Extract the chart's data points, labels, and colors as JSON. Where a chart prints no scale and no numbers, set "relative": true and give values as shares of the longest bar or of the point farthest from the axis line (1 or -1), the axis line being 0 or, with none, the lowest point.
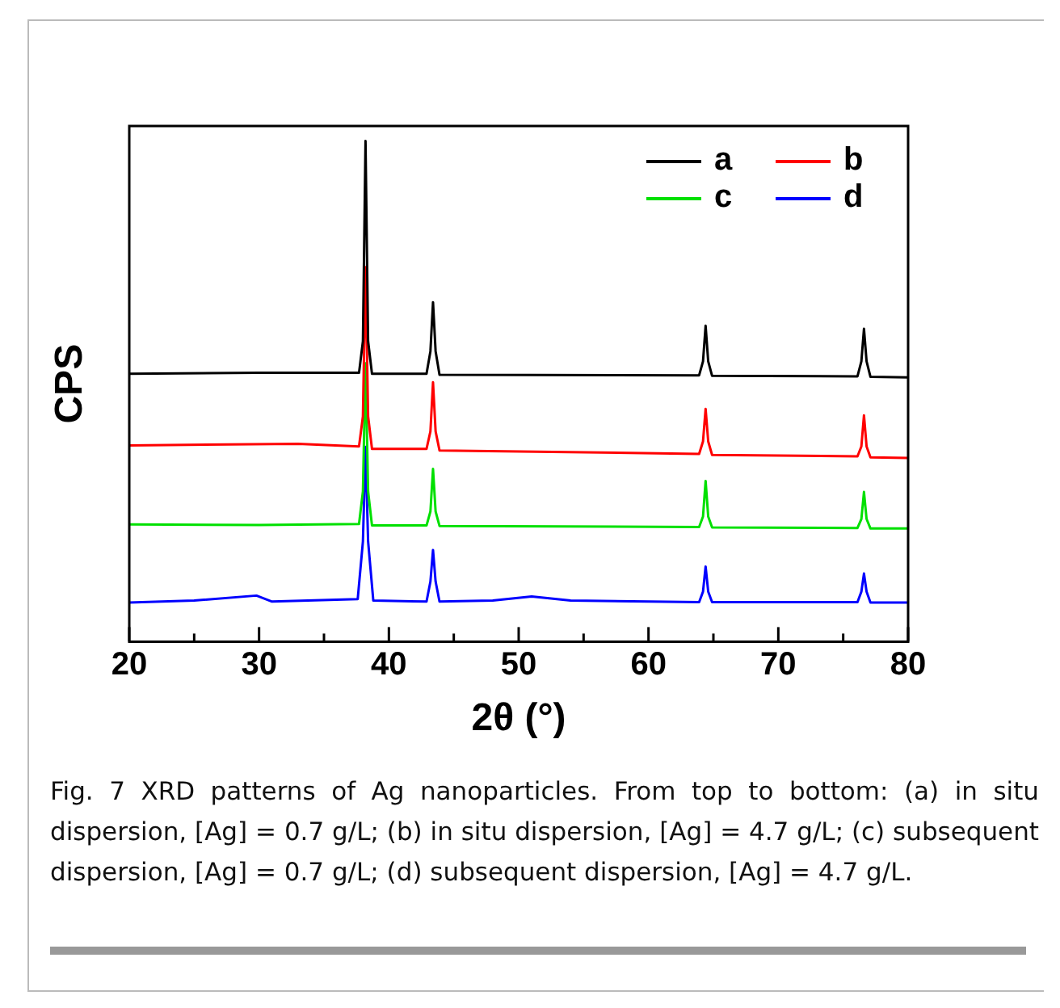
{
  "chart_data": {
    "type": "line",
    "relative": true,
    "xlabel": "2θ (°)",
    "ylabel": "CPS",
    "xlim": [
      20,
      80
    ],
    "xticks": [
      20,
      {
        "value": 25,
        "label": null
      },
      30,
      {
        "value": 35,
        "label": null
      },
      40,
      {
        "value": 45,
        "label": null
      },
      50,
      {
        "value": 55,
        "label": null
      },
      60,
      {
        "value": 65,
        "label": null
      },
      70,
      {
        "value": 75,
        "label": null
      },
      80
    ],
    "legend": "top right",
    "grid": false,
    "marker": "none",
    "line_style": "solid",
    "series": [
      {
        "name": "a",
        "color": "#000000",
        "x": [
          20,
          30,
          37.7,
          38.0,
          38.2,
          38.4,
          38.7,
          42.9,
          43.2,
          43.4,
          43.6,
          43.9,
          63.9,
          64.2,
          64.4,
          64.6,
          64.9,
          76.1,
          76.4,
          76.6,
          76.8,
          77.1,
          80
        ],
        "values": [
          0.535,
          0.537,
          0.537,
          0.6,
          1.0,
          0.6,
          0.535,
          0.535,
          0.58,
          0.678,
          0.58,
          0.533,
          0.532,
          0.56,
          0.631,
          0.56,
          0.531,
          0.53,
          0.56,
          0.625,
          0.56,
          0.529,
          0.528
        ]
      },
      {
        "name": "b",
        "color": "#ff0000",
        "x": [
          20,
          33,
          37.7,
          38.0,
          38.2,
          38.4,
          38.7,
          42.9,
          43.2,
          43.4,
          43.6,
          43.9,
          63.9,
          64.2,
          64.4,
          64.6,
          64.9,
          76.1,
          76.4,
          76.6,
          76.8,
          77.1,
          80
        ],
        "values": [
          0.392,
          0.395,
          0.39,
          0.45,
          0.748,
          0.45,
          0.385,
          0.385,
          0.42,
          0.518,
          0.42,
          0.382,
          0.375,
          0.4,
          0.465,
          0.4,
          0.373,
          0.37,
          0.39,
          0.452,
          0.39,
          0.368,
          0.367
        ]
      },
      {
        "name": "c",
        "color": "#00e000",
        "x": [
          20,
          30,
          37.7,
          38.0,
          38.2,
          38.4,
          38.7,
          42.9,
          43.2,
          43.4,
          43.6,
          43.9,
          63.9,
          64.2,
          64.4,
          64.6,
          64.9,
          76.1,
          76.4,
          76.6,
          76.8,
          77.1,
          80
        ],
        "values": [
          0.234,
          0.233,
          0.235,
          0.3,
          0.556,
          0.3,
          0.232,
          0.232,
          0.26,
          0.345,
          0.26,
          0.231,
          0.229,
          0.25,
          0.321,
          0.25,
          0.228,
          0.227,
          0.245,
          0.299,
          0.245,
          0.226,
          0.226
        ]
      },
      {
        "name": "d",
        "color": "#0000ff",
        "x": [
          20,
          25,
          29.8,
          31,
          37.6,
          38.0,
          38.2,
          38.4,
          38.8,
          42.9,
          43.2,
          43.4,
          43.6,
          43.9,
          48,
          51,
          54,
          63.9,
          64.2,
          64.4,
          64.6,
          64.9,
          76.1,
          76.4,
          76.6,
          76.8,
          77.1,
          80
        ],
        "values": [
          0.078,
          0.082,
          0.092,
          0.08,
          0.085,
          0.2,
          0.389,
          0.2,
          0.082,
          0.08,
          0.12,
          0.183,
          0.12,
          0.08,
          0.082,
          0.09,
          0.082,
          0.079,
          0.1,
          0.15,
          0.1,
          0.079,
          0.079,
          0.1,
          0.136,
          0.1,
          0.078,
          0.078
        ]
      }
    ],
    "annotations": [
      "Fig. 7 XRD patterns of Ag nanoparticles. From top to bottom: (a) in situ dispersion, [Ag] = 0.7 g/L; (b) in situ dispersion, [Ag] = 4.7 g/L; (c) subsequent dispersion, [Ag] = 0.7 g/L; (d) subsequent dispersion, [Ag] = 4.7 g/L."
    ]
  }
}
